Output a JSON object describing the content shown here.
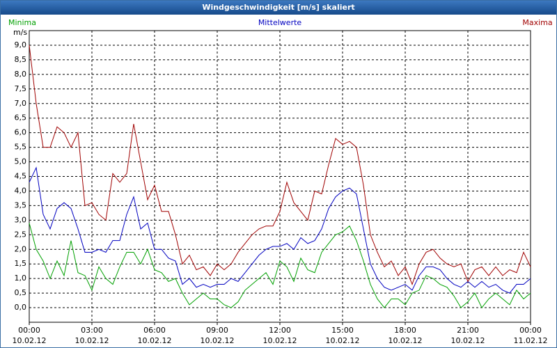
{
  "chart_data": {
    "type": "line",
    "title": "Windgeschwindigkeit [m/s] skaliert",
    "y_label": "m/s",
    "grid": true,
    "xlim": [
      0,
      1440
    ],
    "xticks": [
      {
        "value": 0,
        "label": "00:00\n10.02.12"
      },
      {
        "value": 180,
        "label": "03:00\n10.02.12"
      },
      {
        "value": 360,
        "label": "06:00\n10.02.12"
      },
      {
        "value": 540,
        "label": "09:00\n10.02.12"
      },
      {
        "value": 720,
        "label": "12:00\n10.02.12"
      },
      {
        "value": 900,
        "label": "15:00\n10.02.12"
      },
      {
        "value": 1080,
        "label": "18:00\n10.02.12"
      },
      {
        "value": 1260,
        "label": "21:00\n10.02.12"
      },
      {
        "value": 1440,
        "label": "00:00\n11.02.12"
      }
    ],
    "ylim": [
      -0.5,
      9.5
    ],
    "yticks": [
      {
        "value": 0,
        "label": "0,0"
      },
      {
        "value": 0.5,
        "label": "0,5"
      },
      {
        "value": 1,
        "label": "1,0"
      },
      {
        "value": 1.5,
        "label": "1,5"
      },
      {
        "value": 2,
        "label": "2,0"
      },
      {
        "value": 2.5,
        "label": "2,5"
      },
      {
        "value": 3,
        "label": "3,0"
      },
      {
        "value": 3.5,
        "label": "3,5"
      },
      {
        "value": 4,
        "label": "4,0"
      },
      {
        "value": 4.5,
        "label": "4,5"
      },
      {
        "value": 5,
        "label": "5,0"
      },
      {
        "value": 5.5,
        "label": "5,5"
      },
      {
        "value": 6,
        "label": "6,0"
      },
      {
        "value": 6.5,
        "label": "6,5"
      },
      {
        "value": 7,
        "label": "7,0"
      },
      {
        "value": 7.5,
        "label": "7,5"
      },
      {
        "value": 8,
        "label": "8,0"
      },
      {
        "value": 8.5,
        "label": "8,5"
      },
      {
        "value": 9,
        "label": "9,0"
      }
    ],
    "x": [
      0,
      20,
      40,
      60,
      80,
      100,
      120,
      140,
      160,
      180,
      200,
      220,
      240,
      260,
      280,
      300,
      320,
      340,
      360,
      380,
      400,
      420,
      440,
      460,
      480,
      500,
      520,
      540,
      560,
      580,
      600,
      620,
      640,
      660,
      680,
      700,
      720,
      740,
      760,
      780,
      800,
      820,
      840,
      860,
      880,
      900,
      920,
      940,
      960,
      980,
      1000,
      1020,
      1040,
      1060,
      1080,
      1100,
      1120,
      1140,
      1160,
      1180,
      1200,
      1220,
      1240,
      1260,
      1280,
      1300,
      1320,
      1340,
      1360,
      1380,
      1400,
      1420,
      1440
    ],
    "series": [
      {
        "name": "Minima",
        "color": "#00a000",
        "values": [
          2.9,
          2.0,
          1.6,
          1.0,
          1.6,
          1.1,
          2.3,
          1.2,
          1.1,
          0.6,
          1.4,
          1.0,
          0.8,
          1.4,
          1.9,
          1.9,
          1.5,
          2.0,
          1.3,
          1.2,
          0.9,
          1.0,
          0.5,
          0.1,
          0.3,
          0.5,
          0.3,
          0.3,
          0.1,
          0.0,
          0.2,
          0.6,
          0.8,
          1.0,
          1.2,
          0.8,
          1.6,
          1.4,
          0.9,
          1.7,
          1.3,
          1.2,
          1.9,
          2.2,
          2.5,
          2.6,
          2.8,
          2.3,
          1.6,
          0.8,
          0.3,
          0.0,
          0.3,
          0.3,
          0.1,
          0.5,
          0.6,
          1.1,
          1.0,
          0.8,
          0.7,
          0.4,
          0.0,
          0.2,
          0.5,
          0.0,
          0.3,
          0.5,
          0.3,
          0.1,
          0.6,
          0.3,
          0.5
        ]
      },
      {
        "name": "Mittelwerte",
        "color": "#0000c0",
        "values": [
          4.3,
          4.8,
          3.2,
          2.7,
          3.4,
          3.6,
          3.4,
          2.7,
          1.9,
          1.9,
          2.0,
          1.9,
          2.3,
          2.3,
          3.2,
          3.8,
          2.7,
          2.9,
          2.0,
          2.0,
          1.7,
          1.6,
          0.8,
          1.0,
          0.7,
          0.8,
          0.7,
          0.8,
          0.8,
          1.0,
          0.9,
          1.2,
          1.5,
          1.8,
          2.0,
          2.1,
          2.1,
          2.2,
          2.0,
          2.4,
          2.2,
          2.3,
          2.7,
          3.4,
          3.8,
          4.0,
          4.1,
          3.9,
          2.7,
          1.5,
          1.0,
          0.7,
          0.6,
          0.7,
          0.8,
          0.6,
          1.1,
          1.4,
          1.4,
          1.3,
          1.0,
          0.8,
          0.7,
          0.9,
          0.7,
          0.9,
          0.7,
          0.8,
          0.6,
          0.5,
          0.8,
          0.8,
          1.0
        ]
      },
      {
        "name": "Maxima",
        "color": "#a00000",
        "values": [
          9.0,
          7.0,
          5.5,
          5.5,
          6.2,
          6.0,
          5.5,
          6.0,
          3.5,
          3.6,
          3.2,
          3.0,
          4.6,
          4.3,
          4.6,
          6.3,
          5.0,
          3.7,
          4.2,
          3.3,
          3.3,
          2.5,
          1.5,
          1.8,
          1.3,
          1.4,
          1.1,
          1.5,
          1.3,
          1.5,
          1.9,
          2.2,
          2.5,
          2.7,
          2.8,
          2.8,
          3.3,
          4.3,
          3.6,
          3.3,
          3.0,
          4.0,
          3.9,
          4.9,
          5.8,
          5.6,
          5.7,
          5.5,
          4.2,
          2.5,
          1.9,
          1.4,
          1.6,
          1.1,
          1.4,
          0.8,
          1.5,
          1.9,
          2.0,
          1.7,
          1.5,
          1.4,
          1.5,
          0.9,
          1.3,
          1.4,
          1.1,
          1.4,
          1.1,
          1.3,
          1.2,
          1.9,
          1.4
        ]
      }
    ]
  }
}
